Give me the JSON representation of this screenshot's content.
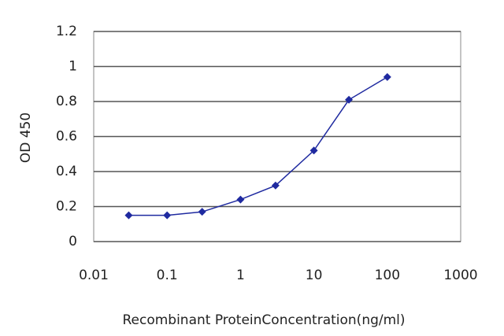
{
  "chart_data": {
    "type": "line",
    "x_label": "Recombinant ProteinConcentration(ng/ml)",
    "y_label": "OD 450",
    "x": [
      0.03,
      0.1,
      0.3,
      1,
      3,
      10,
      30,
      100
    ],
    "series": [
      {
        "color": "#1f2aa0",
        "values": [
          0.15,
          0.15,
          0.17,
          0.24,
          0.32,
          0.52,
          0.81,
          0.94
        ]
      }
    ],
    "xscale": "log",
    "xlim": [
      0.01,
      1000
    ],
    "xticks": [
      0.01,
      0.1,
      1,
      10,
      100,
      1000
    ],
    "ylim": [
      0,
      1.2
    ],
    "yticks": [
      0,
      0.2,
      0.4,
      0.6,
      0.8,
      1,
      1.2
    ],
    "grid": true
  }
}
